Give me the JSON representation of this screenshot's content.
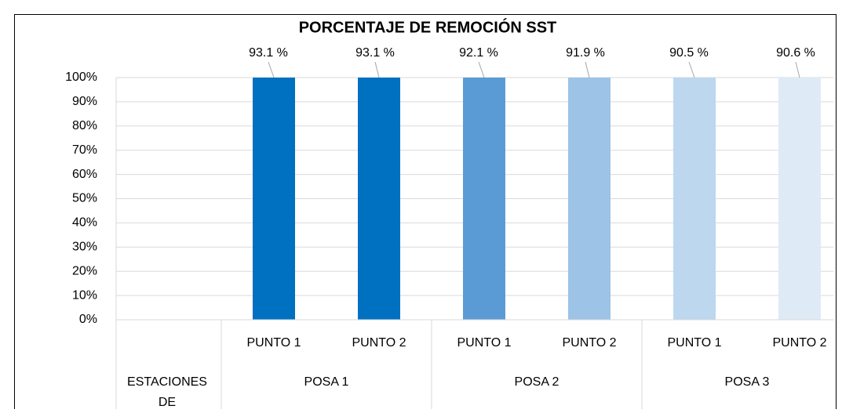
{
  "chart_data": {
    "type": "bar",
    "title": "PORCENTAJE DE REMOCIÓN SST",
    "categories": [
      null,
      "PUNTO 1",
      "PUNTO 2",
      "PUNTO 1",
      "PUNTO 2",
      "PUNTO 1",
      "PUNTO 2"
    ],
    "groups": [
      {
        "label": "ESTACIONES DE",
        "count": 1
      },
      {
        "label": "POSA 1",
        "count": 2
      },
      {
        "label": "POSA 2",
        "count": 2
      },
      {
        "label": "POSA 3",
        "count": 2
      }
    ],
    "values": [
      null,
      93.1,
      93.1,
      92.1,
      91.9,
      90.5,
      90.6
    ],
    "value_labels": [
      null,
      "93.1 %",
      "93.1 %",
      "92.1 %",
      "91.9 %",
      "90.5 %",
      "90.6 %"
    ],
    "colors": [
      null,
      "#0070c0",
      "#0070c0",
      "#5b9bd5",
      "#9dc3e6",
      "#bdd7ee",
      "#deebf7"
    ],
    "ylim": [
      0,
      1
    ],
    "yticks": [
      {
        "value": 0,
        "label": "0%"
      },
      {
        "value": 0.1,
        "label": "10%"
      },
      {
        "value": 0.2,
        "label": "20%"
      },
      {
        "value": 0.3,
        "label": "30%"
      },
      {
        "value": 0.4,
        "label": "40%"
      },
      {
        "value": 0.5,
        "label": "50%"
      },
      {
        "value": 0.6,
        "label": "60%"
      },
      {
        "value": 0.7,
        "label": "70%"
      },
      {
        "value": 0.8,
        "label": "80%"
      },
      {
        "value": 0.9,
        "label": "90%"
      },
      {
        "value": 1,
        "label": "100%"
      }
    ],
    "grid": true
  }
}
